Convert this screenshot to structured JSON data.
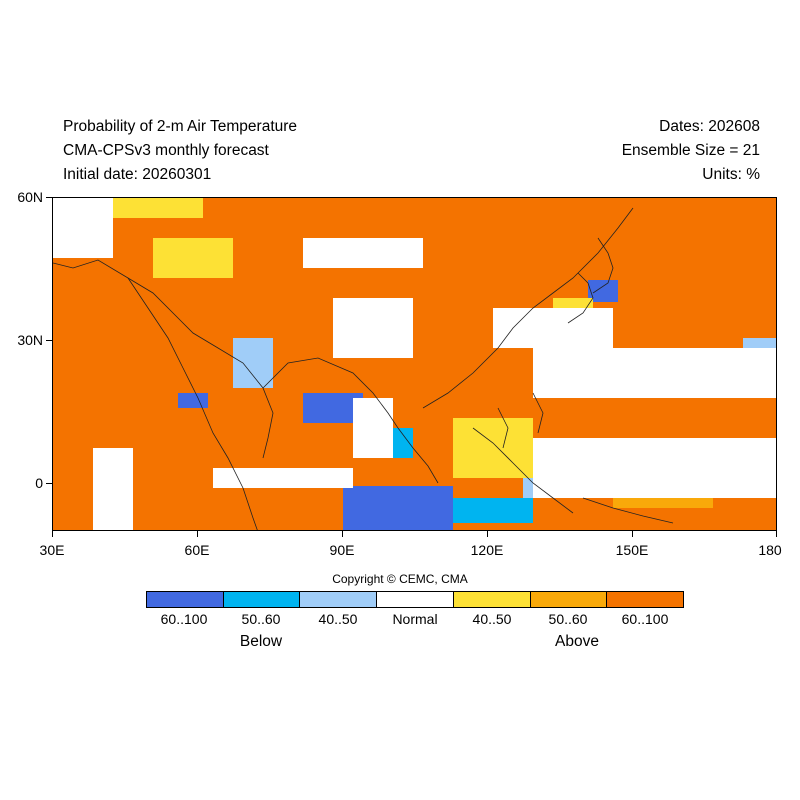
{
  "header": {
    "title_line1": "Probability of 2-m Air Temperature",
    "title_line2": "CMA-CPSv3 monthly forecast",
    "title_line3": "Initial date: 20260301",
    "dates": "Dates: 202608",
    "ensemble": "Ensemble Size = 21",
    "units": "Units: %"
  },
  "map": {
    "lat_labels": [
      "60N",
      "30N",
      "0"
    ],
    "lon_labels": [
      "30E",
      "60E",
      "90E",
      "120E",
      "150E",
      "180"
    ],
    "lat_range": [
      -10,
      60
    ],
    "lon_range": [
      30,
      180
    ],
    "background_category": "above_60_100"
  },
  "copyright": "Copyright © CEMC, CMA",
  "legend": {
    "categories": [
      {
        "id": "below_60_100",
        "label": "60..100",
        "color": "#4169e1"
      },
      {
        "id": "below_50_60",
        "label": "50..60",
        "color": "#00b4f0"
      },
      {
        "id": "below_40_50",
        "label": "40..50",
        "color": "#a0cdf8"
      },
      {
        "id": "normal",
        "label": "Normal",
        "color": "#ffffff"
      },
      {
        "id": "above_40_50",
        "label": "40..50",
        "color": "#fde135"
      },
      {
        "id": "above_50_60",
        "label": "50..60",
        "color": "#f9a90a"
      },
      {
        "id": "above_60_100",
        "label": "60..100",
        "color": "#f47300"
      }
    ],
    "below_label": "Below",
    "above_label": "Above"
  }
}
